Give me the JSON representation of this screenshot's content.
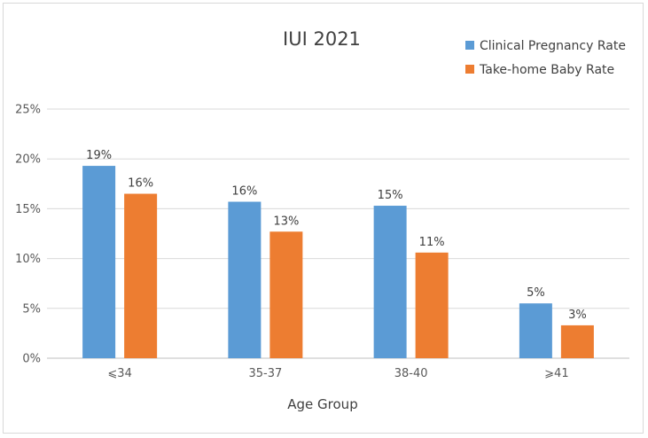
{
  "chart_data": {
    "type": "bar",
    "title": "IUI 2021",
    "xlabel": "Age Group",
    "ylabel": "",
    "categories": [
      "⩽34",
      "35-37",
      "38-40",
      "⩾41"
    ],
    "series": [
      {
        "name": "Clinical Pregnancy Rate",
        "values": [
          19.3,
          15.7,
          15.3,
          5.5
        ],
        "labels": [
          "19%",
          "16%",
          "15%",
          "5%"
        ],
        "color": "#5b9bd5"
      },
      {
        "name": "Take-home Baby Rate",
        "values": [
          16.5,
          12.7,
          10.6,
          3.3
        ],
        "labels": [
          "16%",
          "13%",
          "11%",
          "3%"
        ],
        "color": "#ed7d31"
      }
    ],
    "ylim": [
      0,
      25
    ],
    "yticks": [
      0,
      5,
      10,
      15,
      20,
      25
    ],
    "ytick_labels": [
      "0%",
      "5%",
      "10%",
      "15%",
      "20%",
      "25%"
    ],
    "grid": true,
    "legend_position": "top-right",
    "gridline_color": "#d9d9d9"
  }
}
